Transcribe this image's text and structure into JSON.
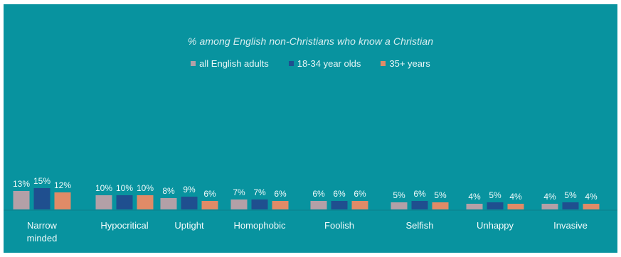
{
  "chart_data": {
    "type": "bar",
    "title": "% among English non-Christians who know a Christian",
    "categories": [
      [
        "Narrow",
        "minded"
      ],
      [
        "Hypocritical"
      ],
      [
        "Uptight"
      ],
      [
        "Homophobic"
      ],
      [
        "Foolish"
      ],
      [
        "Selfish"
      ],
      [
        "Unhappy"
      ],
      [
        "Invasive"
      ]
    ],
    "series": [
      {
        "name": "all English adults",
        "color": "#b3a0a7",
        "values": [
          13,
          10,
          8,
          7,
          6,
          5,
          4,
          4
        ],
        "labels": [
          "13%",
          "10%",
          "8%",
          "7%",
          "6%",
          "5%",
          "4%",
          "4%"
        ]
      },
      {
        "name": "18-34 year olds",
        "color": "#1f4f8f",
        "values": [
          15,
          10,
          9,
          7,
          6,
          6,
          5,
          5
        ],
        "labels": [
          "15%",
          "10%",
          "9%",
          "7%",
          "6%",
          "6%",
          "5%",
          "5%"
        ]
      },
      {
        "name": "35+ years",
        "color": "#e08b67",
        "values": [
          12,
          10,
          6,
          6,
          6,
          5,
          4,
          4
        ],
        "labels": [
          "12%",
          "10%",
          "6%",
          "6%",
          "6%",
          "5%",
          "4%",
          "4%"
        ]
      }
    ],
    "ylim": [
      0,
      40
    ],
    "legend": "top-center",
    "grid": false,
    "background": "#08939f"
  }
}
